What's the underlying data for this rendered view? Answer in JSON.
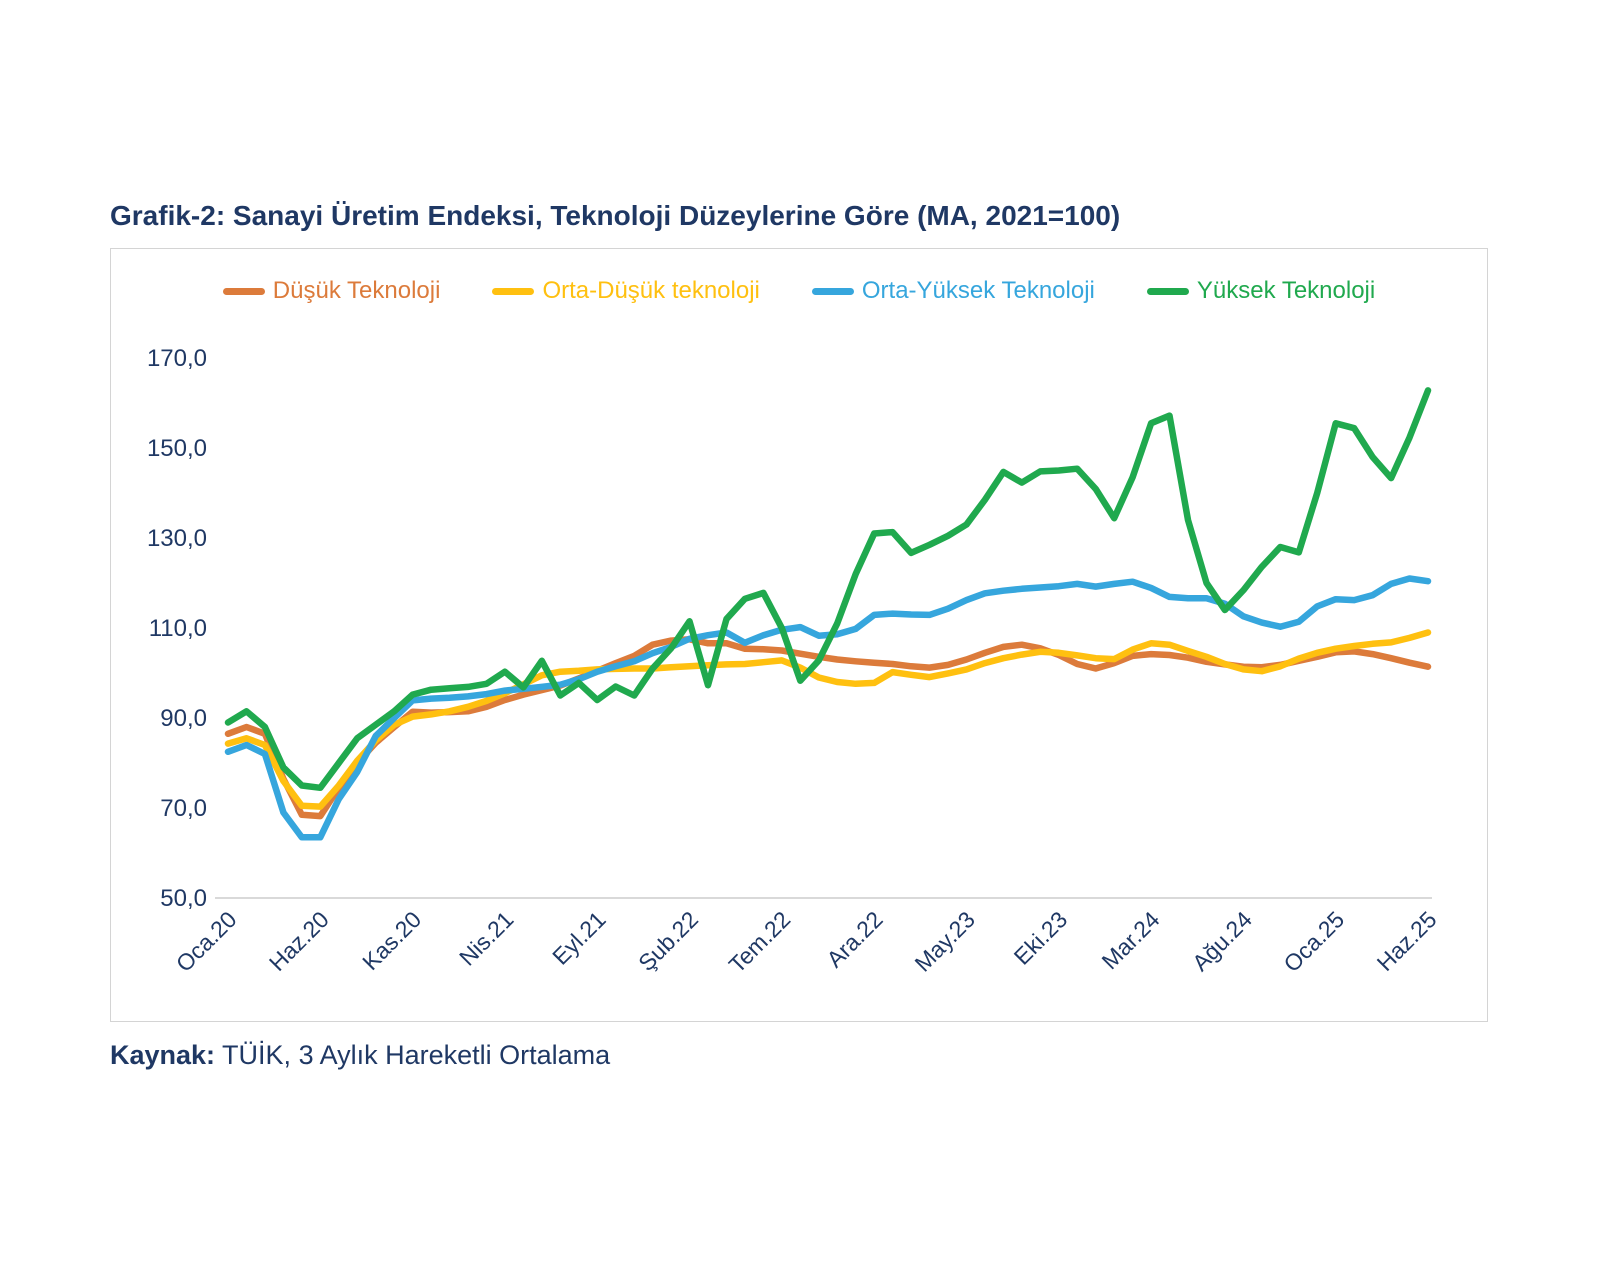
{
  "title": "Grafik-2: Sanayi Üretim Endeksi, Teknoloji Düzeylerine Göre (MA, 2021=100)",
  "source": {
    "label": "Kaynak:",
    "text": " TÜİK, 3 Aylık Hareketli Ortalama"
  },
  "colors": {
    "title_navy": "#1F3864",
    "axis_text": "#1F3864",
    "baseline_gray": "#d9d9d9",
    "frame_border": "#d4d4d4"
  },
  "chart_data": {
    "type": "line",
    "title": "Grafik-2: Sanayi Üretim Endeksi, Teknoloji Düzeylerine Göre (MA, 2021=100)",
    "x_description": "Monthly, Jan 2020 (Oca.20) to Jun 2025 (Haz.25), 66 points, tick every 5 months",
    "x_tick_labels": [
      "Oca.20",
      "Haz.20",
      "Kas.20",
      "Nis.21",
      "Eyl.21",
      "Şub.22",
      "Tem.22",
      "Ara.22",
      "May.23",
      "Eki.23",
      "Mar.24",
      "Ağu.24",
      "Oca.25",
      "Haz.25"
    ],
    "x_tick_every": 5,
    "ylim": [
      50,
      170
    ],
    "y_ticks": [
      170,
      150,
      130,
      110,
      90,
      70,
      50
    ],
    "y_tick_labels": [
      "170,0",
      "150,0",
      "130,0",
      "110,0",
      "90,0",
      "70,0",
      "50,0"
    ],
    "grid": "bottom baseline only",
    "legend_position": "top",
    "series": [
      {
        "name": "Düşük Teknoloji",
        "slug": "dusuk-teknoloji",
        "color": "#DC7B3B",
        "values": [
          86.5,
          88,
          86.5,
          76.5,
          68.5,
          68.2,
          74.5,
          80,
          84.5,
          88,
          91.4,
          91.2,
          91.3,
          91.5,
          92.5,
          94,
          95.2,
          96.2,
          97.2,
          98.8,
          100.5,
          102.2,
          103.8,
          106.3,
          107.2,
          107.5,
          106.6,
          106.6,
          105.4,
          105.3,
          105,
          104.3,
          103.6,
          103,
          102.6,
          102.3,
          102,
          101.5,
          101.2,
          101.8,
          103,
          104.5,
          105.8,
          106.3,
          105.5,
          104,
          102,
          101,
          102.2,
          103.8,
          104.2,
          104,
          103.4,
          102.5,
          101.9,
          101.4,
          101.3,
          101.8,
          102.7,
          103.6,
          104.6,
          104.8,
          104.2,
          103.3,
          102.3,
          101.4
        ]
      },
      {
        "name": "Orta-Düşük teknoloji",
        "slug": "orta-dusuk-teknoloji",
        "color": "#FFC010",
        "values": [
          84.3,
          85.5,
          84,
          76,
          70.5,
          70.3,
          75,
          80.5,
          85,
          88.5,
          90.3,
          90.8,
          91.5,
          92.5,
          93.8,
          95.5,
          97.5,
          99.5,
          100.3,
          100.5,
          100.8,
          100.9,
          101,
          101,
          101.3,
          101.5,
          101.7,
          101.9,
          102,
          102.4,
          102.8,
          101.2,
          99,
          98,
          97.6,
          97.8,
          100.2,
          99.6,
          99.1,
          99.9,
          100.8,
          102.2,
          103.3,
          104.1,
          104.7,
          104.5,
          103.9,
          103.3,
          103.1,
          105.2,
          106.6,
          106.3,
          104.9,
          103.6,
          102,
          100.8,
          100.4,
          101.5,
          103.2,
          104.5,
          105.4,
          106,
          106.5,
          106.8,
          107.8,
          109
        ]
      },
      {
        "name": "Orta-Yüksek Teknoloji",
        "slug": "orta-yuksek-teknoloji",
        "color": "#36A6DD",
        "values": [
          82.5,
          84,
          82,
          69,
          63.5,
          63.5,
          72,
          78,
          86,
          90,
          93.9,
          94.3,
          94.5,
          94.8,
          95.3,
          96.1,
          96.5,
          96.9,
          97.4,
          98.6,
          100.3,
          101.5,
          102.6,
          104.4,
          105.8,
          107.6,
          108.4,
          109,
          106.7,
          108.4,
          109.6,
          110.2,
          108.3,
          108.6,
          109.8,
          112.9,
          113.2,
          113,
          112.9,
          114.3,
          116.2,
          117.7,
          118.3,
          118.7,
          119,
          119.3,
          119.8,
          119.2,
          119.8,
          120.3,
          118.9,
          116.9,
          116.6,
          116.6,
          115.4,
          112.6,
          111.2,
          110.3,
          111.4,
          114.8,
          116.4,
          116.2,
          117.3,
          119.8,
          121,
          120.4
        ]
      },
      {
        "name": "Yüksek Teknoloji",
        "slug": "yuksek-teknoloji",
        "color": "#20A94E",
        "values": [
          89,
          91.5,
          88,
          79,
          75,
          74.5,
          80,
          85.5,
          88.5,
          91.5,
          95.2,
          96.3,
          96.6,
          96.9,
          97.6,
          100.3,
          96.8,
          102.7,
          95,
          97.8,
          94,
          97,
          95,
          101,
          105.5,
          111.5,
          97.3,
          112,
          116.5,
          117.8,
          110,
          98.3,
          102.8,
          111,
          122,
          131,
          131.3,
          126.7,
          128.5,
          130.5,
          133,
          138.5,
          144.7,
          142.3,
          144.8,
          145,
          145.4,
          140.9,
          134.4,
          143.5,
          155.5,
          157.2,
          134,
          120,
          114,
          118.4,
          123.6,
          128,
          126.8,
          140,
          155.5,
          154.4,
          148,
          143.3,
          152.3,
          162.8
        ]
      }
    ]
  }
}
